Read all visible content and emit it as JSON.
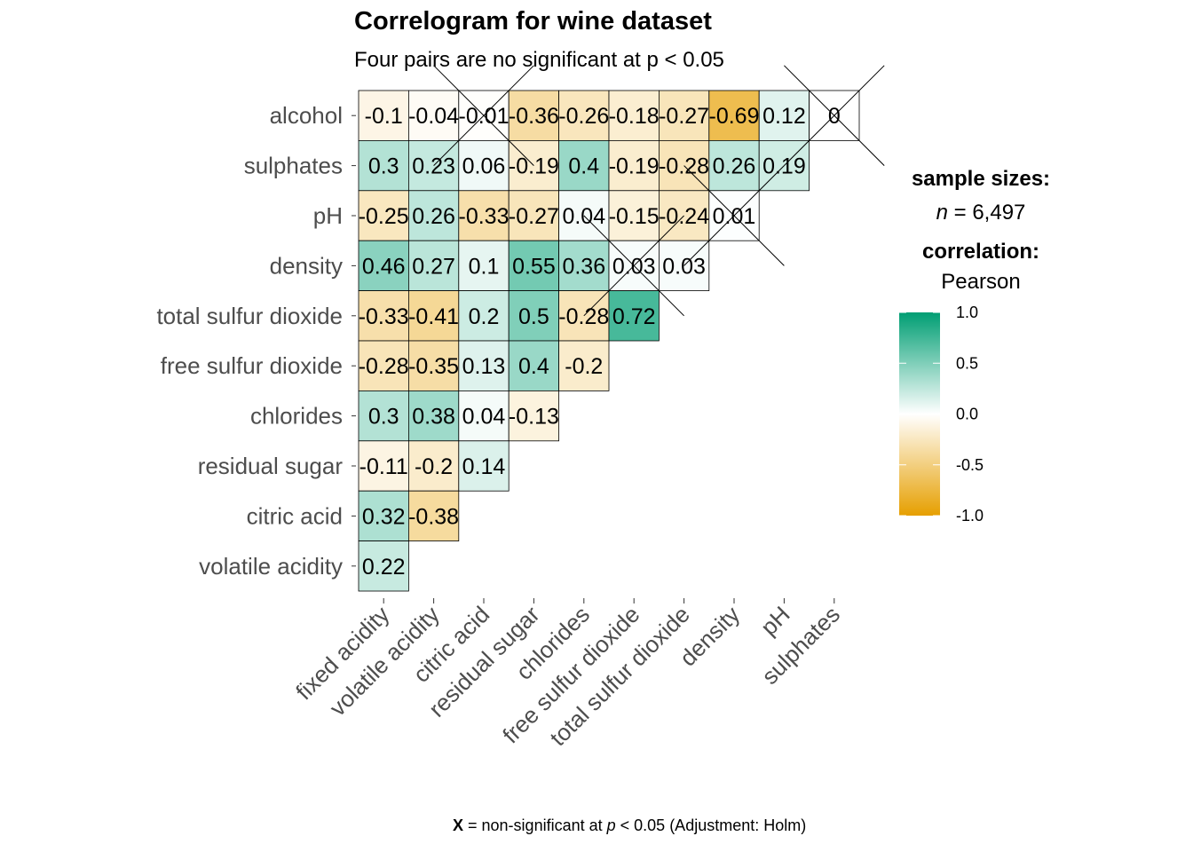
{
  "chart_data": {
    "type": "heatmap",
    "title": "Correlogram for wine dataset",
    "subtitle": "Four pairs are no significant at p < 0.05",
    "rows": [
      "alcohol",
      "sulphates",
      "pH",
      "density",
      "total sulfur dioxide",
      "free sulfur dioxide",
      "chlorides",
      "residual sugar",
      "citric acid",
      "volatile acidity"
    ],
    "columns": [
      "fixed acidity",
      "volatile acidity",
      "citric acid",
      "residual sugar",
      "chlorides",
      "free sulfur dioxide",
      "total sulfur dioxide",
      "density",
      "pH",
      "sulphates"
    ],
    "cells": [
      {
        "row": "alcohol",
        "values": [
          -0.1,
          -0.04,
          -0.01,
          -0.36,
          -0.26,
          -0.18,
          -0.27,
          -0.69,
          0.12,
          0
        ],
        "labels": [
          "-0.1",
          "-0.04",
          "-0.01",
          "-0.36",
          "-0.26",
          "-0.18",
          "-0.27",
          "-0.69",
          "0.12",
          "0"
        ]
      },
      {
        "row": "sulphates",
        "values": [
          0.3,
          0.23,
          0.06,
          -0.19,
          0.4,
          -0.19,
          -0.28,
          0.26,
          0.19
        ],
        "labels": [
          "0.3",
          "0.23",
          "0.06",
          "-0.19",
          "0.4",
          "-0.19",
          "-0.28",
          "0.26",
          "0.19"
        ]
      },
      {
        "row": "pH",
        "values": [
          -0.25,
          0.26,
          -0.33,
          -0.27,
          0.04,
          -0.15,
          -0.24,
          0.01
        ],
        "labels": [
          "-0.25",
          "0.26",
          "-0.33",
          "-0.27",
          "0.04",
          "-0.15",
          "-0.24",
          "0.01"
        ]
      },
      {
        "row": "density",
        "values": [
          0.46,
          0.27,
          0.1,
          0.55,
          0.36,
          0.03,
          0.03
        ],
        "labels": [
          "0.46",
          "0.27",
          "0.1",
          "0.55",
          "0.36",
          "0.03",
          "0.03"
        ]
      },
      {
        "row": "total sulfur dioxide",
        "values": [
          -0.33,
          -0.41,
          0.2,
          0.5,
          -0.28,
          0.72
        ],
        "labels": [
          "-0.33",
          "-0.41",
          "0.2",
          "0.5",
          "-0.28",
          "0.72"
        ]
      },
      {
        "row": "free sulfur dioxide",
        "values": [
          -0.28,
          -0.35,
          0.13,
          0.4,
          -0.2
        ],
        "labels": [
          "-0.28",
          "-0.35",
          "0.13",
          "0.4",
          "-0.2"
        ]
      },
      {
        "row": "chlorides",
        "values": [
          0.3,
          0.38,
          0.04,
          -0.13
        ],
        "labels": [
          "0.3",
          "0.38",
          "0.04",
          "-0.13"
        ]
      },
      {
        "row": "residual sugar",
        "values": [
          -0.11,
          -0.2,
          0.14
        ],
        "labels": [
          "-0.11",
          "-0.2",
          "0.14"
        ]
      },
      {
        "row": "citric acid",
        "values": [
          0.32,
          -0.38
        ],
        "labels": [
          "0.32",
          "-0.38"
        ]
      },
      {
        "row": "volatile acidity",
        "values": [
          0.22
        ],
        "labels": [
          "0.22"
        ]
      }
    ],
    "non_significant": [
      {
        "row": "alcohol",
        "column": "citric acid"
      },
      {
        "row": "alcohol",
        "column": "sulphates"
      },
      {
        "row": "pH",
        "column": "density"
      },
      {
        "row": "density",
        "column": "free sulfur dioxide"
      }
    ],
    "legend": {
      "sample_sizes_heading": "sample sizes:",
      "sample_sizes_n_symbol": "n",
      "sample_sizes_value": "= 6,497",
      "correlation_heading": "correlation:",
      "correlation_method": "Pearson",
      "colorbar_ticks": [
        "1.0",
        "0.5",
        "0.0",
        "-0.5",
        "-1.0"
      ],
      "colorbar_range": [
        -1,
        1
      ],
      "placement": "right"
    },
    "colors": {
      "negative": "#E69F00",
      "zero": "#FFFFFF",
      "positive": "#009E73"
    },
    "caption": {
      "symbol": "X",
      "text_before_p": " = non-significant at ",
      "p_symbol": "p",
      "text_after_p": " < 0.05 (Adjustment: Holm)"
    }
  }
}
